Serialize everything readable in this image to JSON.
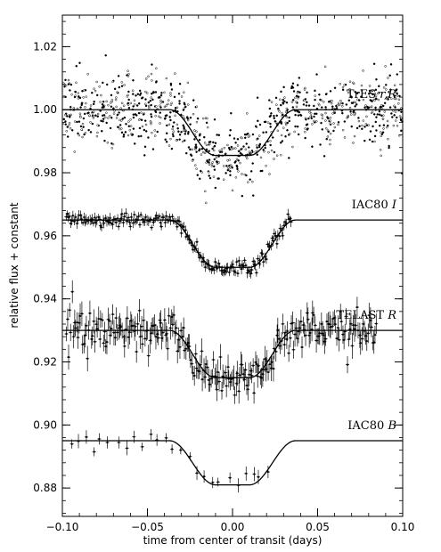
{
  "chart_data": {
    "type": "scatter",
    "xlabel": "time from center of transit (days)",
    "ylabel": "relative flux + constant",
    "xlim": [
      -0.1,
      0.1
    ],
    "ylim": [
      0.871,
      1.03
    ],
    "x_ticks": [
      -0.1,
      -0.05,
      0.0,
      0.05,
      0.1
    ],
    "x_tick_labels": [
      "−0.10",
      "−0.05",
      "0.00",
      "0.05",
      "0.10"
    ],
    "y_ticks": [
      0.88,
      0.9,
      0.92,
      0.94,
      0.96,
      0.98,
      1.0,
      1.02
    ],
    "y_tick_labels": [
      "0.88",
      "0.90",
      "0.92",
      "0.94",
      "0.96",
      "0.98",
      "1.00",
      "1.02"
    ],
    "grid": false,
    "model": {
      "description": "transit model curve",
      "ingress_start": -0.037,
      "flat_bottom_start": -0.01,
      "flat_bottom_end": 0.01,
      "egress_end": 0.037
    },
    "series": [
      {
        "name": "TrES r,R",
        "label_main": "TrES ",
        "label_filter": "r,R",
        "baseline": 1.0,
        "depth": 0.0145,
        "x_range": [
          -0.1,
          0.1
        ],
        "n_points": 1000,
        "scatter": 0.0055,
        "error_bars": false,
        "model_x_range": [
          -0.1,
          0.1
        ]
      },
      {
        "name": "IAC80 I",
        "label_main": "IAC80 ",
        "label_filter": "I",
        "baseline": 0.965,
        "depth": 0.015,
        "x_range": [
          -0.098,
          0.035
        ],
        "n_points": 190,
        "scatter": 0.0012,
        "error_bars": true,
        "error_size": 0.0013,
        "model_x_range": [
          -0.1,
          0.1
        ]
      },
      {
        "name": "TELAST R",
        "label_main": "TELAST ",
        "label_filter": "R",
        "baseline": 0.93,
        "depth": 0.015,
        "x_range": [
          -0.098,
          0.085
        ],
        "n_points": 260,
        "scatter": 0.0032,
        "error_bars": true,
        "error_size": 0.0032,
        "model_x_range": [
          -0.1,
          0.1
        ]
      },
      {
        "name": "IAC80 B",
        "label_main": "IAC80 ",
        "label_filter": "B",
        "baseline": 0.895,
        "depth": 0.014,
        "x_range": [
          -0.097,
          0.024
        ],
        "n_points": 26,
        "scatter": 0.0017,
        "error_bars": true,
        "error_size": 0.0018,
        "model_x_range": [
          -0.1,
          0.1
        ]
      }
    ]
  }
}
